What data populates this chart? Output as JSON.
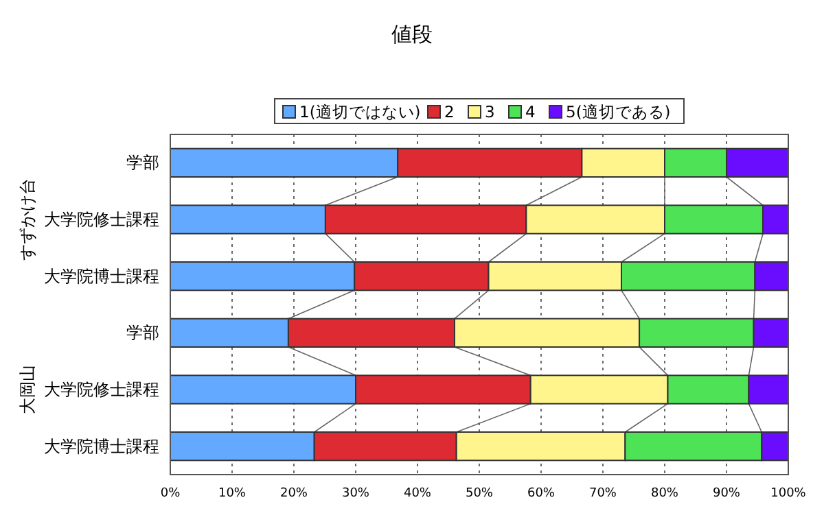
{
  "chart_data": {
    "type": "bar",
    "orientation": "horizontal",
    "stacked": true,
    "title": "値段",
    "categories": [
      "学部",
      "大学院修士課程",
      "大学院博士課程",
      "学部",
      "大学院修士課程",
      "大学院博士課程"
    ],
    "annotations": [
      "すずかけ台",
      "大岡山"
    ],
    "series": [
      {
        "name": "1(適切ではない)",
        "color": "#63a9ff",
        "values": [
          36.8,
          25.1,
          29.8,
          19.1,
          30.0,
          23.3
        ]
      },
      {
        "name": "2",
        "color": "#de2b33",
        "values": [
          29.8,
          32.5,
          21.7,
          26.9,
          28.3,
          23.0
        ]
      },
      {
        "name": "3",
        "color": "#fff58c",
        "values": [
          13.4,
          22.4,
          21.5,
          29.9,
          22.2,
          27.3
        ]
      },
      {
        "name": "4",
        "color": "#4ee257",
        "values": [
          10.0,
          15.9,
          21.6,
          18.5,
          13.1,
          22.1
        ]
      },
      {
        "name": "5(適切である)",
        "color": "#6a0dff",
        "values": [
          10.0,
          4.1,
          5.4,
          5.6,
          6.4,
          4.3
        ]
      }
    ],
    "xlim": [
      0,
      100
    ],
    "xticks": [
      {
        "value": 0,
        "label": "0%"
      },
      {
        "value": 10,
        "label": "10%"
      },
      {
        "value": 20,
        "label": "20%"
      },
      {
        "value": 30,
        "label": "30%"
      },
      {
        "value": 40,
        "label": "40%"
      },
      {
        "value": 50,
        "label": "50%"
      },
      {
        "value": 60,
        "label": "60%"
      },
      {
        "value": 70,
        "label": "70%"
      },
      {
        "value": 80,
        "label": "80%"
      },
      {
        "value": 90,
        "label": "90%"
      },
      {
        "value": 100,
        "label": "100%"
      }
    ],
    "grid": "x",
    "legend": "top"
  }
}
